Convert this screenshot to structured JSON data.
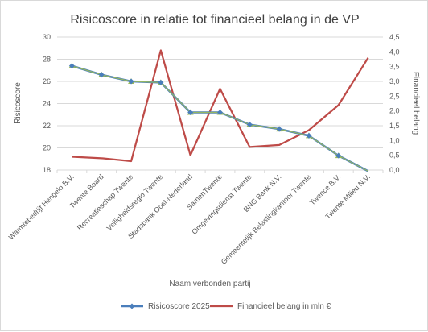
{
  "chart_data": {
    "type": "line",
    "title": "Risicoscore in relatie tot financieel belang in de VP",
    "xlabel": "Naam verbonden partij",
    "ylabel": "Risicoscore",
    "y2label": "Financieel belang",
    "ylim": [
      18,
      30
    ],
    "yticks": [
      "18",
      "20",
      "22",
      "24",
      "26",
      "28",
      "30"
    ],
    "y2lim": [
      0,
      4.5
    ],
    "y2ticks": [
      "0,0",
      "0,5",
      "1,0",
      "1,5",
      "2,0",
      "2,5",
      "3,0",
      "3,5",
      "4,0",
      "4,5"
    ],
    "grid": true,
    "legend_position": "bottom",
    "categories": [
      "Warmtebedrijf Hengelo B.V.",
      "Twente Board",
      "Recreatieschap Twente",
      "Veiligheidsregio Twente",
      "Stadsbank Oost-Nederland",
      "SamenTwente",
      "Omgevingsdienst Twente",
      "BNG Bank N.V.",
      "Gemeentelijk Belastingkantoor Twente",
      "Twence B.V.",
      "Twente Milieu N.V."
    ],
    "series": [
      {
        "name": "Risicoscore 2025",
        "axis": "left",
        "color": "#4a7ebb",
        "marker_color": "#9bbb59",
        "values": [
          27.4,
          26.6,
          26.0,
          25.9,
          23.2,
          23.2,
          22.1,
          21.7,
          21.1,
          19.3,
          17.9
        ]
      },
      {
        "name": "Financieel belang in mln €",
        "axis": "right",
        "color": "#be4b48",
        "values": [
          0.45,
          0.4,
          0.3,
          4.05,
          0.5,
          2.75,
          0.78,
          0.85,
          1.35,
          2.2,
          3.8
        ]
      }
    ]
  }
}
